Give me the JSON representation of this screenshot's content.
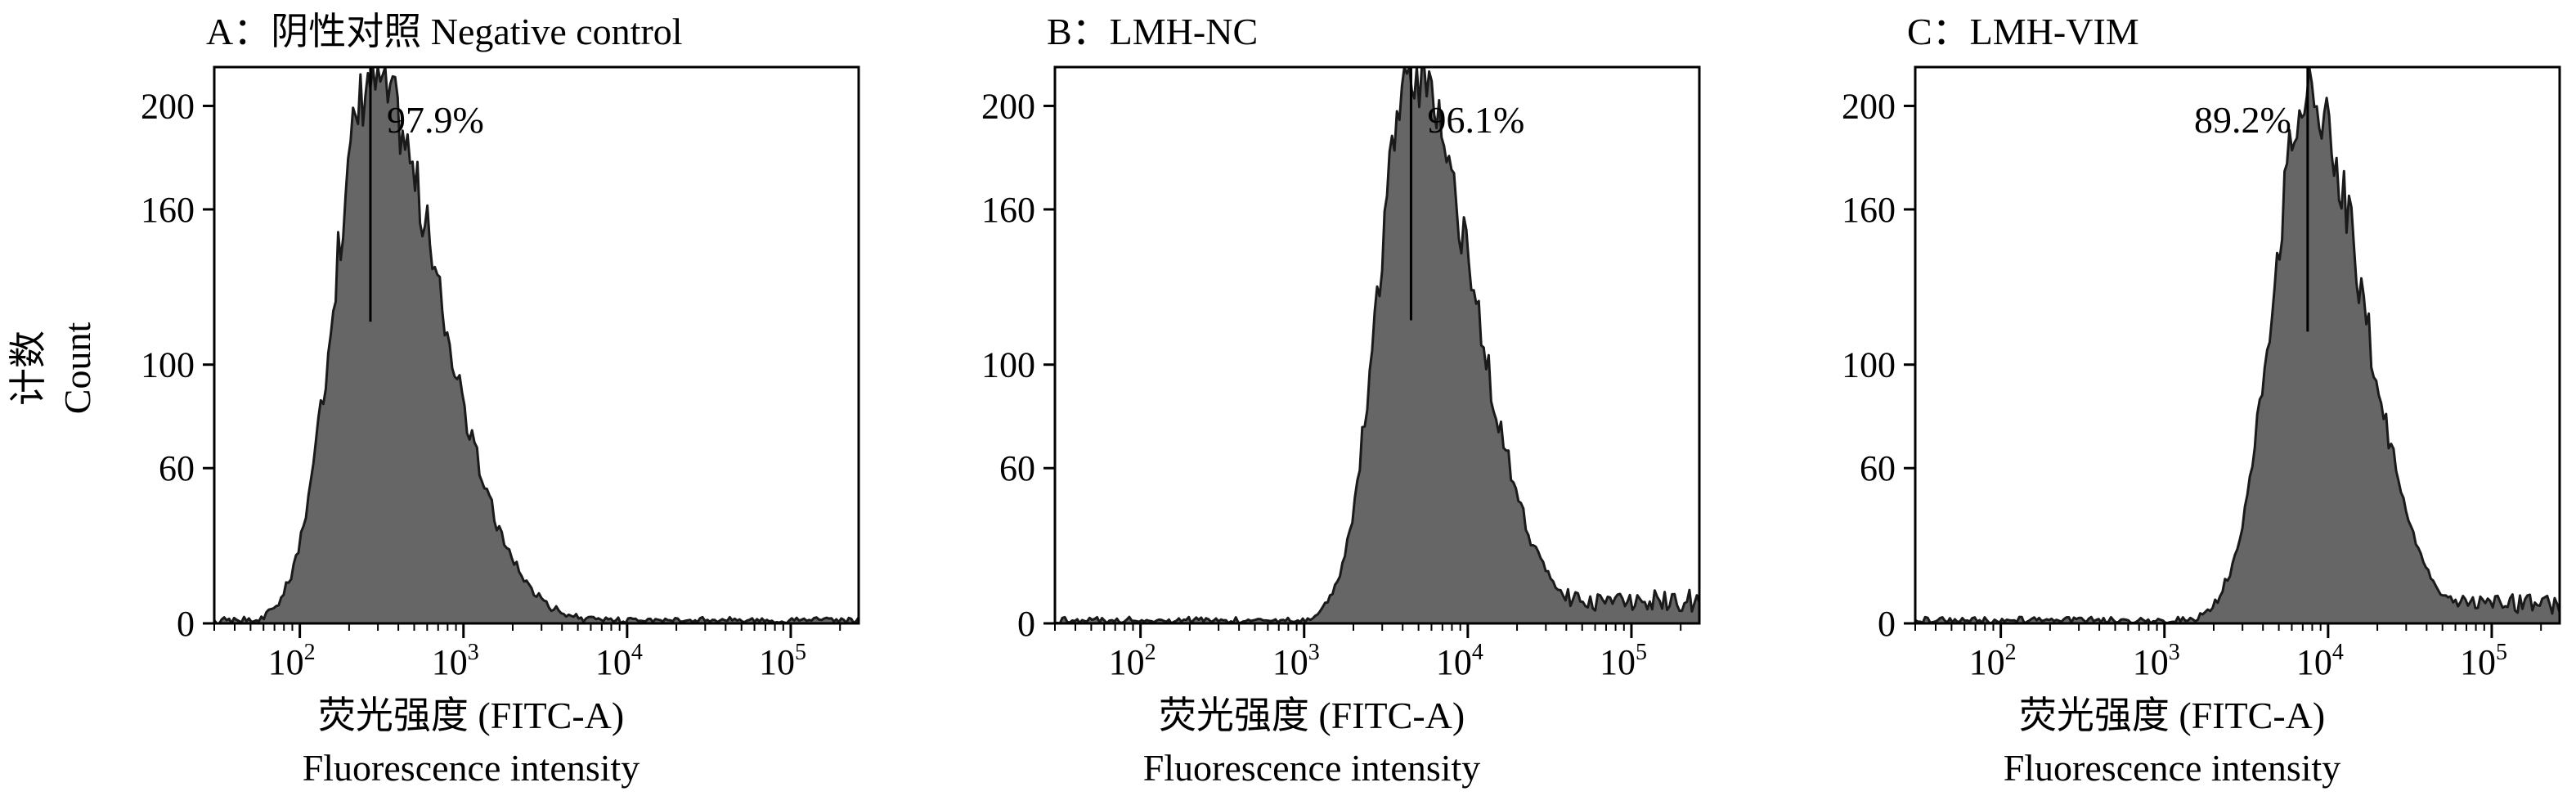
{
  "y_axis_title": {
    "zh": "计数",
    "en": "Count"
  },
  "chart_data": [
    {
      "type": "histogram",
      "panel": "A",
      "title": "A：阴性对照 Negative control",
      "xlabel_zh": "荧光强度 (FITC-A)",
      "xlabel_en": "Fluorescence intensity",
      "x_scale": "log",
      "x_ticks": [
        {
          "base": "10",
          "exp": "2",
          "value": 100
        },
        {
          "base": "10",
          "exp": "3",
          "value": 1000
        },
        {
          "base": "10",
          "exp": "4",
          "value": 10000
        },
        {
          "base": "10",
          "exp": "5",
          "value": 100000
        }
      ],
      "y_ticks": [
        "0",
        "60",
        "100",
        "160",
        "200"
      ],
      "y_tick_values": [
        0,
        60,
        100,
        160,
        200
      ],
      "xlim": [
        30,
        260000
      ],
      "ylim": [
        0,
        215
      ],
      "peak_x": 270,
      "peak_count": 212,
      "log_spread_left": 0.22,
      "log_spread_right": 0.42,
      "percentage": "97.9%",
      "color": "#666666"
    },
    {
      "type": "histogram",
      "panel": "B",
      "title": "B：LMH-NC",
      "xlabel_zh": "荧光强度 (FITC-A)",
      "xlabel_en": "Fluorescence intensity",
      "x_scale": "log",
      "x_ticks": [
        {
          "base": "10",
          "exp": "2",
          "value": 100
        },
        {
          "base": "10",
          "exp": "3",
          "value": 1000
        },
        {
          "base": "10",
          "exp": "4",
          "value": 10000
        },
        {
          "base": "10",
          "exp": "5",
          "value": 100000
        }
      ],
      "y_ticks": [
        "0",
        "60",
        "100",
        "160",
        "200"
      ],
      "y_tick_values": [
        0,
        60,
        100,
        160,
        200
      ],
      "xlim": [
        30,
        260000
      ],
      "ylim": [
        0,
        215
      ],
      "peak_x": 4500,
      "peak_count": 213,
      "log_spread_left": 0.2,
      "log_spread_right": 0.38,
      "tail_level": 9,
      "percentage": "96.1%",
      "color": "#666666"
    },
    {
      "type": "histogram",
      "panel": "C",
      "title": "C：LMH-VIM",
      "xlabel_zh": "荧光强度 (FITC-A)",
      "xlabel_en": "Fluorescence intensity",
      "x_scale": "log",
      "x_ticks": [
        {
          "base": "10",
          "exp": "2",
          "value": 100
        },
        {
          "base": "10",
          "exp": "3",
          "value": 1000
        },
        {
          "base": "10",
          "exp": "4",
          "value": 10000
        },
        {
          "base": "10",
          "exp": "5",
          "value": 100000
        }
      ],
      "y_ticks": [
        "0",
        "60",
        "100",
        "160",
        "200"
      ],
      "y_tick_values": [
        0,
        60,
        100,
        160,
        200
      ],
      "xlim": [
        30,
        260000
      ],
      "ylim": [
        0,
        215
      ],
      "peak_x": 7500,
      "peak_count": 205,
      "log_spread_left": 0.22,
      "log_spread_right": 0.34,
      "tail_level": 8,
      "percentage": "89.2%",
      "color": "#666666"
    }
  ]
}
